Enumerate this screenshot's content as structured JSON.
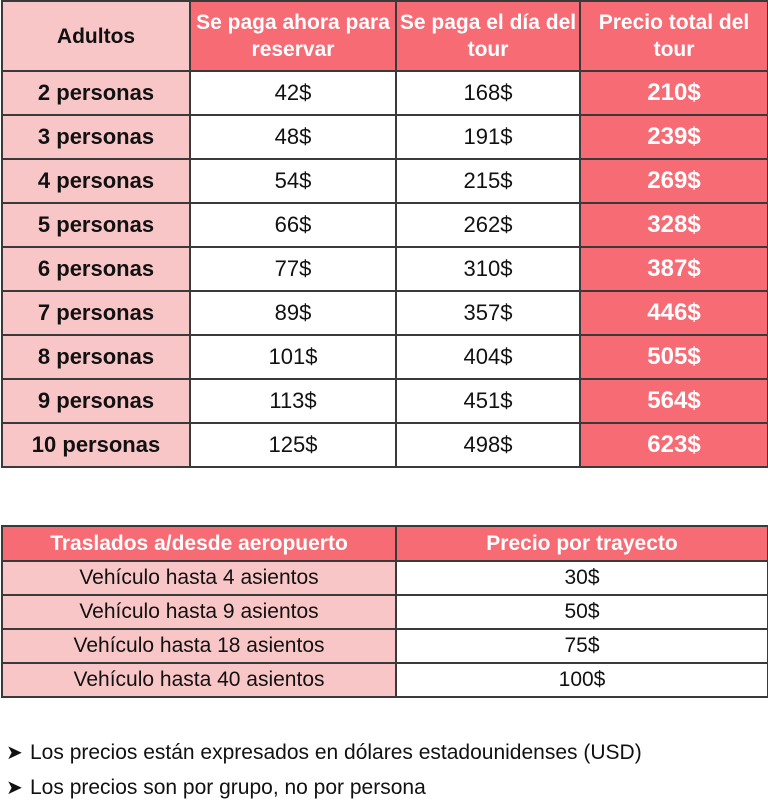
{
  "tour_table": {
    "headers": [
      "Adultos",
      "Se paga ahora para reservar",
      "Se paga el día del tour",
      "Precio total del tour"
    ],
    "rows": [
      {
        "label": "2 personas",
        "now": "42$",
        "day": "168$",
        "total": "210$"
      },
      {
        "label": "3 personas",
        "now": "48$",
        "day": "191$",
        "total": "239$"
      },
      {
        "label": "4 personas",
        "now": "54$",
        "day": "215$",
        "total": "269$"
      },
      {
        "label": "5 personas",
        "now": "66$",
        "day": "262$",
        "total": "328$"
      },
      {
        "label": "6 personas",
        "now": "77$",
        "day": "310$",
        "total": "387$"
      },
      {
        "label": "7 personas",
        "now": "89$",
        "day": "357$",
        "total": "446$"
      },
      {
        "label": "8 personas",
        "now": "101$",
        "day": "404$",
        "total": "505$"
      },
      {
        "label": "9 personas",
        "now": "113$",
        "day": "451$",
        "total": "564$"
      },
      {
        "label": "10 personas",
        "now": "125$",
        "day": "498$",
        "total": "623$"
      }
    ]
  },
  "transfer_table": {
    "headers": [
      "Traslados a/desde aeropuerto",
      "Precio por trayecto"
    ],
    "rows": [
      {
        "vehicle": "Vehículo hasta 4 asientos",
        "price": "30$"
      },
      {
        "vehicle": "Vehículo hasta 9 asientos",
        "price": "50$"
      },
      {
        "vehicle": "Vehículo hasta 18 asientos",
        "price": "75$"
      },
      {
        "vehicle": "Vehículo hasta 40 asientos",
        "price": "100$"
      }
    ]
  },
  "notes": [
    {
      "bullet": "➤",
      "text": "Los precios están expresados en dólares estadounidenses (USD)"
    },
    {
      "bullet": "➤",
      "text": "Los precios son por grupo, no por persona"
    }
  ],
  "colors": {
    "accent": "#f76b74",
    "light": "#f9c6c8",
    "border": "#3a3a3a"
  }
}
